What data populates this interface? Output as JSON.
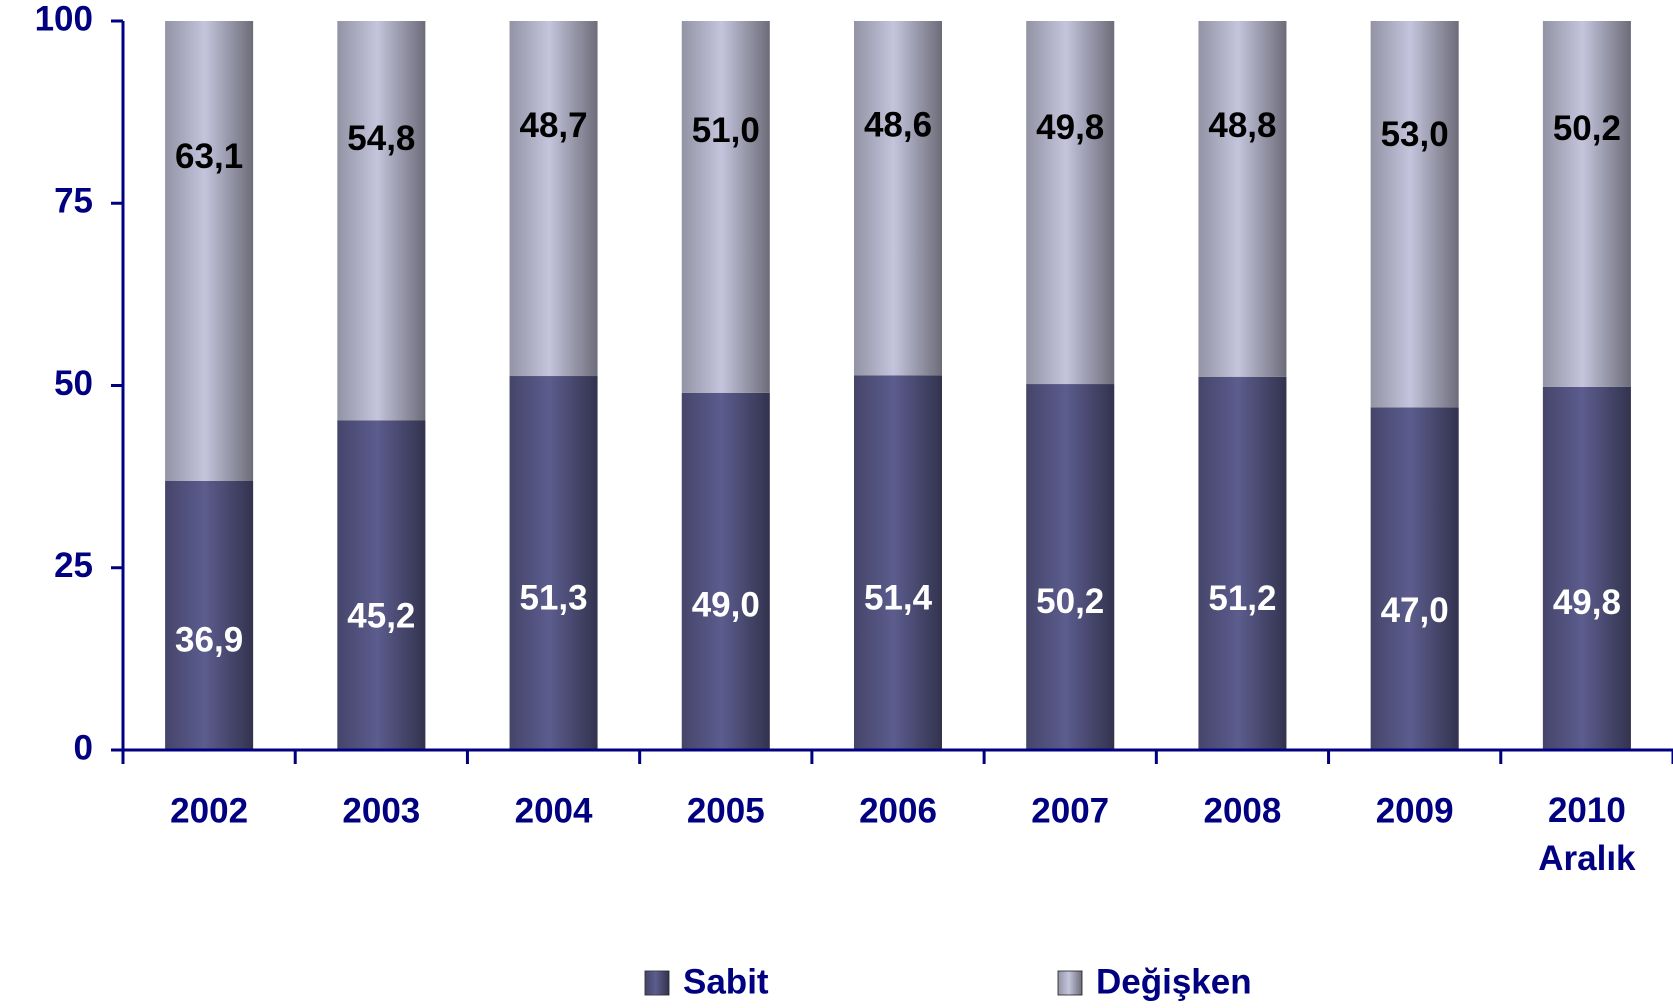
{
  "chart_data": {
    "type": "stacked_bar",
    "categories": [
      "2002",
      "2003",
      "2004",
      "2005",
      "2006",
      "2007",
      "2008",
      "2009",
      "2010 Aralık"
    ],
    "series": [
      {
        "name": "Sabit",
        "color": "#5c5c8e",
        "values": [
          36.9,
          45.2,
          51.3,
          49.0,
          51.4,
          50.2,
          51.2,
          47.0,
          49.8
        ],
        "value_labels": [
          "36,9",
          "45,2",
          "51,3",
          "49,0",
          "51,4",
          "50,2",
          "51,2",
          "47,0",
          "49,8"
        ]
      },
      {
        "name": "Değişken",
        "color": "#c4c4dc",
        "values": [
          63.1,
          54.8,
          48.7,
          51.0,
          48.6,
          49.8,
          48.8,
          53.0,
          50.2
        ],
        "value_labels": [
          "63,1",
          "54,8",
          "48,7",
          "51,0",
          "48,6",
          "49,8",
          "48,8",
          "53,0",
          "50,2"
        ]
      }
    ],
    "ylim": [
      0,
      100
    ],
    "yticks": [
      0,
      25,
      50,
      75,
      100
    ],
    "legend": "bottom"
  }
}
